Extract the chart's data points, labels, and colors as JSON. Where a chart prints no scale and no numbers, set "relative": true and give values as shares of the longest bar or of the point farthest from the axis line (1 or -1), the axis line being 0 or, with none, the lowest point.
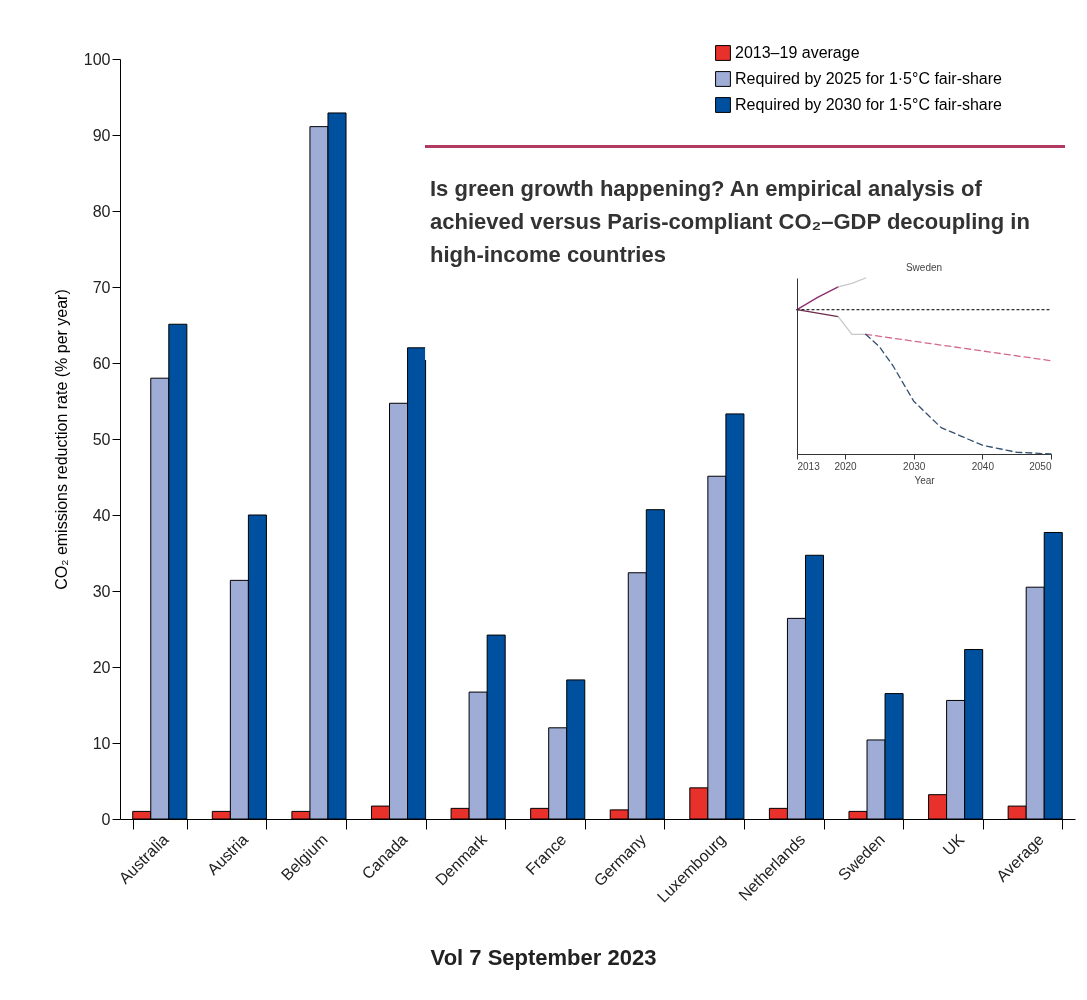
{
  "chart_data": [
    {
      "type": "bar",
      "ylabel": "CO₂ emissions reduction rate (% per year)",
      "categories": [
        "Australia",
        "Austria",
        "Belgium",
        "Canada",
        "Denmark",
        "France",
        "Germany",
        "Luxembourg",
        "Netherlands",
        "Sweden",
        "UK",
        "Average"
      ],
      "series": [
        {
          "name": "2013–19 average",
          "color": "#e8312a",
          "values": [
            1,
            1,
            1,
            1.7,
            1.4,
            1.4,
            1.2,
            4.1,
            1.4,
            1,
            3.2,
            1.7
          ]
        },
        {
          "name": "Required by 2025 for 1·5°C fair-share",
          "color": "#9fadd6",
          "values": [
            58,
            31.4,
            91.1,
            54.7,
            16.7,
            12,
            32.4,
            45.1,
            26.4,
            10.4,
            15.6,
            30.5
          ]
        },
        {
          "name": "Required by 2030 for 1·5°C fair-share",
          "color": "#0050a0",
          "values": [
            65.1,
            40,
            92.9,
            62,
            24.2,
            18.3,
            40.7,
            53.3,
            34.7,
            16.5,
            22.3,
            37.7
          ]
        }
      ],
      "ylim": [
        0,
        100
      ],
      "yticks": [
        0,
        10,
        20,
        30,
        40,
        50,
        60,
        70,
        80,
        90,
        100
      ],
      "grid": false,
      "legend": "top right",
      "annotations": [
        "Is green growth happening? An empirical analysis of achieved versus Paris-compliant CO₂–GDP decoupling in high-income countries",
        "Vol 7   September 2023"
      ]
    },
    {
      "type": "line",
      "title": "Sweden",
      "xlabel": "Year",
      "relative": true,
      "tick_labels": "x",
      "xlim": [
        2013,
        2050
      ],
      "xticks": [
        2013,
        2020,
        2030,
        2040,
        2050
      ],
      "grid": false,
      "series": [
        {
          "color": "#8b2d6e",
          "line_style": "solid",
          "x": [
            2013,
            2016,
            2019
          ],
          "values": [
            0.82,
            0.89,
            0.95
          ]
        },
        {
          "color": "#c8c8c8",
          "line_style": "solid",
          "x": [
            2019,
            2021,
            2023
          ],
          "values": [
            0.95,
            0.97,
            1
          ]
        },
        {
          "color": "#6b2a4a",
          "line_style": "solid",
          "x": [
            2013,
            2016,
            2019
          ],
          "values": [
            0.82,
            0.8,
            0.78
          ]
        },
        {
          "color": "#c8c8c8",
          "line_style": "solid",
          "x": [
            2019,
            2021,
            2023
          ],
          "values": [
            0.78,
            0.68,
            0.68
          ]
        },
        {
          "color": "#333333",
          "line_style": "dotted",
          "x": [
            2013,
            2050
          ],
          "values": [
            0.82,
            0.82
          ]
        },
        {
          "color": "#d46a8a",
          "line_style": "dashed",
          "x": [
            2023,
            2050
          ],
          "values": [
            0.68,
            0.53
          ]
        },
        {
          "color": "#34506e",
          "line_style": "dashed",
          "x": [
            2023,
            2025,
            2027,
            2030,
            2034,
            2040,
            2045,
            2050
          ],
          "values": [
            0.68,
            0.61,
            0.5,
            0.3,
            0.15,
            0.05,
            0.01,
            0
          ]
        }
      ]
    }
  ]
}
